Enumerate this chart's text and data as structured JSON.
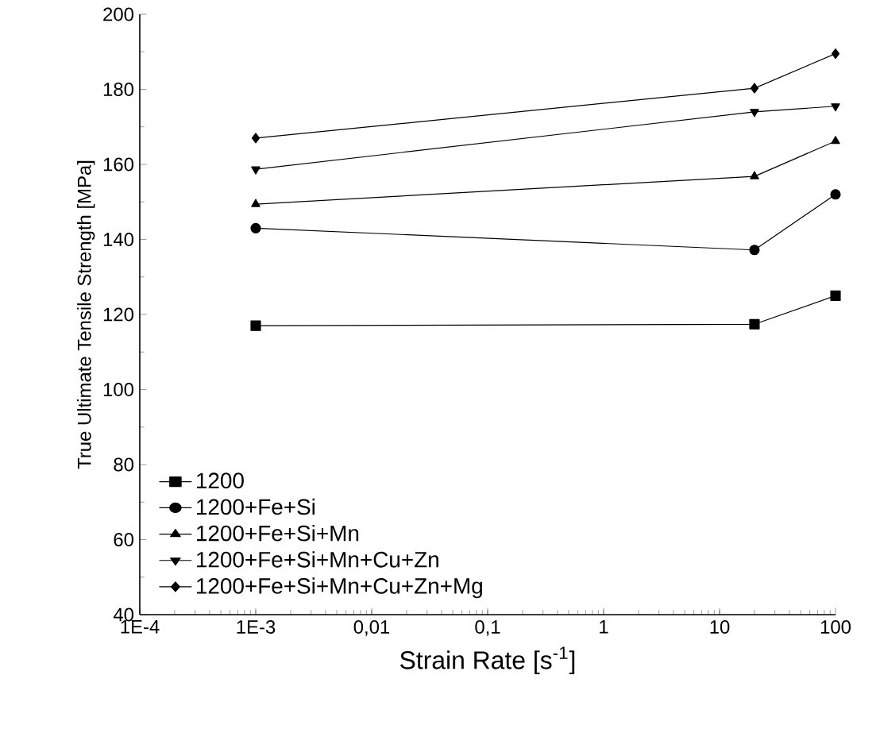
{
  "chart_data": {
    "type": "line",
    "xlabel": "Strain Rate [s$^{-1}$]",
    "ylabel": "True Ultimate Tensile Strength [MPa]",
    "log": "x",
    "x": [
      0.001,
      20,
      100
    ],
    "xlim": [
      0.0001,
      100
    ],
    "xticks": [
      {
        "value": 0.0001,
        "label": "1E-4"
      },
      {
        "value": 0.001,
        "label": "1E-3"
      },
      {
        "value": 0.01,
        "label": "0,01"
      },
      {
        "value": 0.1,
        "label": "0,1"
      },
      {
        "value": 1,
        "label": "1"
      },
      {
        "value": 10,
        "label": "10"
      },
      {
        "value": 100,
        "label": "100"
      }
    ],
    "ylim": [
      40,
      200
    ],
    "yticks": [
      40,
      60,
      80,
      100,
      120,
      140,
      160,
      180,
      200
    ],
    "grid": false,
    "legend": "bottom left",
    "line_style": "solid",
    "series": [
      {
        "name": "1200",
        "color": "#000000",
        "marker": "square",
        "values": [
          117,
          117.4,
          125
        ]
      },
      {
        "name": "1200+Fe+Si",
        "color": "#000000",
        "marker": "circle",
        "values": [
          143,
          137.2,
          152
        ]
      },
      {
        "name": "1200+Fe+Si+Mn",
        "color": "#000000",
        "marker": "triangle",
        "values": [
          149.4,
          156.8,
          166.2
        ]
      },
      {
        "name": "1200+Fe+Si+Mn+Cu+Zn",
        "color": "#000000",
        "marker": "triangle down",
        "values": [
          158.7,
          174,
          175.5
        ]
      },
      {
        "name": "1200+Fe+Si+Mn+Cu+Zn+Mg",
        "color": "#000000",
        "marker": "diamond",
        "values": [
          167,
          180.3,
          189.5
        ]
      }
    ]
  }
}
